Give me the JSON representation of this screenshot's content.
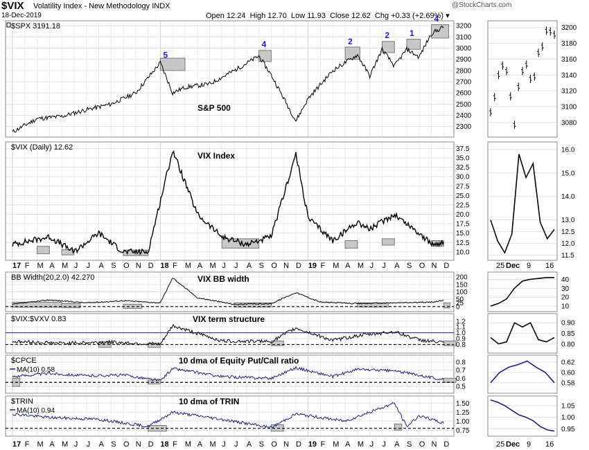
{
  "header": {
    "symbol": "$VIX",
    "name": "Volatility Index - New Methodology  INDX",
    "date": "18-Dec-2019",
    "watermark": "@StockCharts.com",
    "quote": {
      "open_label": "Open",
      "open": "12.24",
      "high_label": "High",
      "high": "12.70",
      "low_label": "Low",
      "low": "11.93",
      "close_label": "Close",
      "close": "12.62",
      "chg_label": "Chg",
      "chg": "+0.33 (+2.69%)"
    }
  },
  "colors": {
    "price": "#000000",
    "blue": "#1a237e",
    "box_fill": "#c8c8c8",
    "box_stroke": "#777777",
    "grid": "#e0e0e0",
    "count_label": "#1a1ad6"
  },
  "chart_data": [
    {
      "type": "line",
      "panel": "spx",
      "legend": "$SPX 3191.18",
      "annotation": "S&P 500",
      "y_ticks": [
        "3200",
        "3100",
        "3000",
        "2900",
        "2800",
        "2700",
        "2600",
        "2500",
        "2400",
        "2300"
      ],
      "ylim": [
        2230,
        3220
      ],
      "x": [
        "17-01",
        "17-03",
        "17-05",
        "17-07",
        "17-09",
        "17-11",
        "18-01",
        "18-02",
        "18-03",
        "18-05",
        "18-07",
        "18-09",
        "18-10",
        "18-12",
        "19-01",
        "19-03",
        "19-05",
        "19-06",
        "19-07",
        "19-08",
        "19-09",
        "19-10",
        "19-11",
        "19-12"
      ],
      "values": [
        2250,
        2370,
        2390,
        2450,
        2500,
        2600,
        2870,
        2600,
        2650,
        2680,
        2800,
        2930,
        2760,
        2350,
        2550,
        2800,
        2940,
        2750,
        2990,
        2840,
        2990,
        2920,
        3130,
        3191
      ],
      "box_labels": [
        "5",
        "4",
        "2",
        "2",
        "1",
        "4"
      ],
      "zoom": {
        "y_ticks": [
          "3200",
          "3180",
          "3160",
          "3140",
          "3120",
          "3100",
          "3080"
        ],
        "ylim": [
          3065,
          3205
        ],
        "values": [
          3093,
          3112,
          3140,
          3152,
          3145,
          3113,
          3077,
          3125,
          3145,
          3153,
          3135,
          3138,
          3168,
          3176,
          3196,
          3195,
          3191
        ]
      }
    },
    {
      "type": "line",
      "panel": "vix",
      "legend": "$VIX (Daily) 12.62",
      "annotation": "VIX Index",
      "y_ticks": [
        "37.5",
        "35.0",
        "32.5",
        "30.0",
        "27.5",
        "25.0",
        "22.5",
        "20.0",
        "17.5",
        "15.0",
        "12.5",
        "10.0"
      ],
      "ylim": [
        8.5,
        38.5
      ],
      "x": [
        "17-01",
        "17-04",
        "17-06",
        "17-08",
        "17-10",
        "17-12",
        "18-02",
        "18-04",
        "18-06",
        "18-08",
        "18-10",
        "18-12",
        "19-01",
        "19-03",
        "19-05",
        "19-06",
        "19-08",
        "19-10",
        "19-11",
        "19-12"
      ],
      "values": [
        12,
        14,
        10,
        15,
        10,
        10,
        37,
        20,
        14,
        12,
        14,
        36,
        19,
        13,
        18,
        16,
        20,
        15,
        12,
        12.62
      ],
      "zoom": {
        "y_ticks": [
          "16.0",
          "15.0",
          "14.0",
          "13.0",
          "12.5",
          "12.0",
          "11.5"
        ],
        "ylim": [
          11.4,
          16.2
        ],
        "values": [
          13.0,
          12.1,
          11.6,
          12.4,
          15.8,
          14.8,
          15.4,
          12.9,
          12.2,
          12.6
        ]
      },
      "x_labels": [
        "17",
        "F",
        "M",
        "A",
        "M",
        "J",
        "J",
        "A",
        "S",
        "O",
        "N",
        "D",
        "18",
        "F",
        "M",
        "A",
        "M",
        "J",
        "J",
        "A",
        "S",
        "O",
        "N",
        "D",
        "19",
        "F",
        "M",
        "A",
        "M",
        "J",
        "J",
        "A",
        "S",
        "O",
        "N",
        "D"
      ],
      "zoom_x_labels": [
        "25",
        "Dec",
        "9",
        "16"
      ]
    },
    {
      "type": "line",
      "panel": "bbw",
      "legend": "BB Width(20,2.0) 42.270",
      "annotation": "VIX BB width",
      "y_ticks": [
        "200",
        "150",
        "100",
        "50",
        "25",
        "0"
      ],
      "ylim": [
        -15,
        215
      ],
      "x": [
        "17-01",
        "17-04",
        "17-07",
        "17-10",
        "18-01",
        "18-02",
        "18-04",
        "18-07",
        "18-10",
        "18-12",
        "19-02",
        "19-05",
        "19-08",
        "19-11",
        "19-12"
      ],
      "values": [
        15,
        45,
        25,
        40,
        25,
        195,
        60,
        15,
        20,
        95,
        30,
        20,
        25,
        30,
        42
      ],
      "zoom": {
        "y_ticks": [
          "40",
          "30",
          "20",
          "10"
        ],
        "ylim": [
          7,
          45
        ],
        "values": [
          10,
          13,
          18,
          30,
          38,
          40,
          41,
          42,
          42
        ]
      }
    },
    {
      "type": "line",
      "panel": "term",
      "legend": "$VIX:$VXV 0.83",
      "annotation": "VIX term structure",
      "y_ticks": [
        "1.2",
        "1.1",
        "1.0",
        "0.9",
        "0.8"
      ],
      "ylim": [
        0.7,
        1.28
      ],
      "x": [
        "17-01",
        "17-05",
        "17-09",
        "18-01",
        "18-02",
        "18-06",
        "18-10",
        "18-12",
        "19-03",
        "19-05",
        "19-08",
        "19-10",
        "19-12"
      ],
      "values": [
        0.85,
        0.82,
        0.84,
        0.8,
        1.12,
        0.86,
        0.85,
        1.08,
        0.87,
        0.95,
        1.02,
        0.88,
        0.83
      ],
      "zoom": {
        "y_ticks": [
          "0.90",
          "0.85",
          "0.80"
        ],
        "ylim": [
          0.77,
          0.93
        ],
        "values": [
          0.83,
          0.8,
          0.81,
          0.9,
          0.88,
          0.9,
          0.82,
          0.81,
          0.83
        ]
      }
    },
    {
      "type": "line",
      "panel": "cpce",
      "legend": "$CPCE",
      "legend2": "MA(10) 0.58",
      "annotation": "10 dma of Equity Put/Call ratio",
      "y_ticks": [
        "0.8",
        "0.7",
        "0.6",
        "0.5"
      ],
      "ylim": [
        0.45,
        0.85
      ],
      "x": [
        "17-01",
        "17-04",
        "17-07",
        "17-10",
        "18-01",
        "18-02",
        "18-06",
        "18-10",
        "18-12",
        "19-03",
        "19-05",
        "19-08",
        "19-10",
        "19-12"
      ],
      "values": [
        0.62,
        0.66,
        0.63,
        0.64,
        0.57,
        0.72,
        0.62,
        0.6,
        0.73,
        0.62,
        0.71,
        0.69,
        0.64,
        0.58
      ],
      "zoom": {
        "y_ticks": [
          "0.62",
          "0.60",
          "0.58"
        ],
        "ylim": [
          0.565,
          0.628
        ],
        "values": [
          0.58,
          0.6,
          0.61,
          0.615,
          0.622,
          0.61,
          0.6,
          0.58
        ]
      }
    },
    {
      "type": "line",
      "panel": "trin",
      "legend": "$TRIN",
      "legend2": "MA(10) 0.94",
      "annotation": "10 dma of TRIN",
      "y_ticks": [
        "1.50",
        "1.25",
        "1.00",
        "0.75"
      ],
      "ylim": [
        0.66,
        1.62
      ],
      "x": [
        "17-01",
        "17-04",
        "17-08",
        "17-12",
        "18-02",
        "18-06",
        "18-10",
        "18-12",
        "19-04",
        "19-08",
        "19-09",
        "19-10",
        "19-12"
      ],
      "values": [
        1.2,
        1.1,
        1.05,
        0.85,
        1.25,
        1.05,
        0.82,
        1.2,
        1.0,
        1.5,
        0.85,
        1.15,
        0.94
      ],
      "zoom": {
        "y_ticks": [
          "1.05",
          "1.00",
          "0.95"
        ],
        "ylim": [
          0.93,
          1.08
        ],
        "values": [
          1.075,
          1.065,
          1.05,
          1.03,
          1.01,
          1.0,
          0.985,
          0.96,
          0.945,
          0.94
        ]
      }
    }
  ]
}
